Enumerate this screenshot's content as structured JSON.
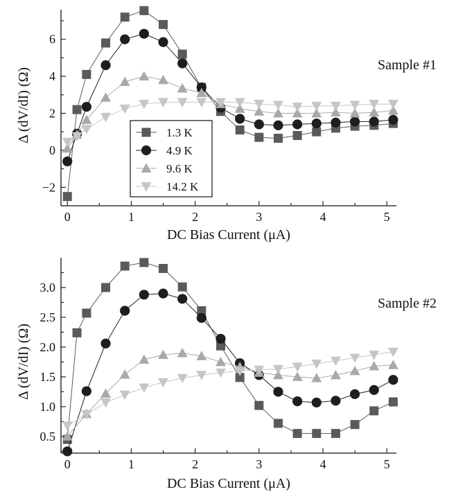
{
  "colors": {
    "1.3 K": "#5a5a5a",
    "4.9 K": "#1e1e1e",
    "9.6 K": "#a9a9a9",
    "14.2 K": "#c6c6c6"
  },
  "chart_data": [
    {
      "type": "scatter",
      "title": "",
      "annotation": "Sample #1",
      "xlabel": "DC Bias Current (μA)",
      "ylabel": "Δ (dV/dI)  (Ω)",
      "xlim": [
        -0.1,
        5.15
      ],
      "ylim": [
        -3.0,
        7.6
      ],
      "xticks": [
        0,
        1,
        2,
        3,
        4,
        5
      ],
      "xtick_labels": [
        "0",
        "1",
        "2",
        "3",
        "4",
        "5"
      ],
      "yticks": [
        -2,
        0,
        2,
        4,
        6
      ],
      "ytick_labels": [
        "−2",
        "0",
        "2",
        "4",
        "6"
      ],
      "grid": false,
      "legend": "center-left",
      "series": [
        {
          "name": "1.3 K",
          "marker": "square",
          "x": [
            0,
            0.15,
            0.3,
            0.6,
            0.9,
            1.2,
            1.5,
            1.8,
            2.1,
            2.4,
            2.7,
            3.0,
            3.3,
            3.6,
            3.9,
            4.2,
            4.5,
            4.8,
            5.1
          ],
          "y": [
            -2.5,
            2.2,
            4.1,
            5.8,
            7.2,
            7.55,
            6.8,
            5.2,
            3.4,
            2.1,
            1.1,
            0.7,
            0.65,
            0.8,
            1.0,
            1.2,
            1.3,
            1.35,
            1.45
          ]
        },
        {
          "name": "4.9 K",
          "marker": "circle",
          "x": [
            0,
            0.15,
            0.3,
            0.6,
            0.9,
            1.2,
            1.5,
            1.8,
            2.1,
            2.4,
            2.7,
            3.0,
            3.3,
            3.6,
            3.9,
            4.2,
            4.5,
            4.8,
            5.1
          ],
          "y": [
            -0.6,
            0.9,
            2.35,
            4.6,
            6.0,
            6.3,
            5.85,
            4.7,
            3.4,
            2.3,
            1.7,
            1.4,
            1.35,
            1.4,
            1.45,
            1.5,
            1.55,
            1.55,
            1.65
          ]
        },
        {
          "name": "9.6 K",
          "marker": "triangle-up",
          "x": [
            0,
            0.15,
            0.3,
            0.6,
            0.9,
            1.2,
            1.5,
            1.8,
            2.1,
            2.4,
            2.7,
            3.0,
            3.3,
            3.6,
            3.9,
            4.2,
            4.5,
            4.8,
            5.1
          ],
          "y": [
            0.1,
            0.85,
            1.65,
            2.85,
            3.7,
            4.0,
            3.8,
            3.35,
            3.1,
            2.5,
            2.25,
            2.1,
            2.0,
            2.0,
            2.0,
            2.05,
            2.0,
            2.05,
            2.15
          ]
        },
        {
          "name": "14.2 K",
          "marker": "triangle-down",
          "x": [
            0,
            0.15,
            0.3,
            0.6,
            0.9,
            1.2,
            1.5,
            1.8,
            2.1,
            2.4,
            2.7,
            3.0,
            3.3,
            3.6,
            3.9,
            4.2,
            4.5,
            4.8,
            5.1
          ],
          "y": [
            0.45,
            0.75,
            1.15,
            1.8,
            2.25,
            2.5,
            2.6,
            2.6,
            2.6,
            2.6,
            2.6,
            2.5,
            2.45,
            2.35,
            2.4,
            2.4,
            2.45,
            2.5,
            2.5
          ]
        }
      ]
    },
    {
      "type": "scatter",
      "title": "",
      "annotation": "Sample #2",
      "xlabel": "DC Bias Current (μA)",
      "ylabel": "Δ (dV/dI)  (Ω)",
      "xlim": [
        -0.1,
        5.15
      ],
      "ylim": [
        0.22,
        3.5
      ],
      "xticks": [
        0,
        1,
        2,
        3,
        4,
        5
      ],
      "xtick_labels": [
        "0",
        "1",
        "2",
        "3",
        "4",
        "5"
      ],
      "yticks": [
        0.5,
        1.0,
        1.5,
        2.0,
        2.5,
        3.0
      ],
      "ytick_labels": [
        "0.5",
        "1.0",
        "1.5",
        "2.0",
        "2.5",
        "3.0"
      ],
      "grid": false,
      "series": [
        {
          "name": "1.3 K",
          "marker": "square",
          "x": [
            0,
            0.15,
            0.3,
            0.6,
            0.9,
            1.2,
            1.5,
            1.8,
            2.1,
            2.4,
            2.7,
            3.0,
            3.3,
            3.6,
            3.9,
            4.2,
            4.5,
            4.8,
            5.1
          ],
          "y": [
            0.45,
            2.24,
            2.57,
            3.0,
            3.36,
            3.42,
            3.32,
            3.01,
            2.61,
            2.02,
            1.49,
            1.02,
            0.72,
            0.55,
            0.55,
            0.55,
            0.7,
            0.93,
            1.08
          ]
        },
        {
          "name": "4.9 K",
          "marker": "circle",
          "x": [
            0,
            0.3,
            0.6,
            0.9,
            1.2,
            1.5,
            1.8,
            2.1,
            2.4,
            2.7,
            3.0,
            3.3,
            3.6,
            3.9,
            4.2,
            4.5,
            4.8,
            5.1
          ],
          "y": [
            0.25,
            1.26,
            2.06,
            2.61,
            2.88,
            2.9,
            2.81,
            2.49,
            2.14,
            1.73,
            1.53,
            1.25,
            1.09,
            1.07,
            1.1,
            1.21,
            1.28,
            1.45
          ]
        },
        {
          "name": "9.6 K",
          "marker": "triangle-up",
          "x": [
            0,
            0.3,
            0.6,
            0.9,
            1.2,
            1.5,
            1.8,
            2.1,
            2.4,
            2.7,
            3.0,
            3.3,
            3.6,
            3.9,
            4.2,
            4.5,
            4.8,
            5.1
          ],
          "y": [
            0.5,
            0.88,
            1.22,
            1.54,
            1.79,
            1.87,
            1.9,
            1.85,
            1.75,
            1.67,
            1.57,
            1.53,
            1.5,
            1.48,
            1.53,
            1.6,
            1.68,
            1.7
          ]
        },
        {
          "name": "14.2 K",
          "marker": "triangle-down",
          "x": [
            0,
            0.3,
            0.6,
            0.9,
            1.2,
            1.5,
            1.8,
            2.1,
            2.4,
            2.7,
            3.0,
            3.3,
            3.6,
            3.9,
            4.2,
            4.5,
            4.8,
            5.1
          ],
          "y": [
            0.68,
            0.87,
            1.07,
            1.2,
            1.32,
            1.41,
            1.48,
            1.53,
            1.57,
            1.6,
            1.62,
            1.63,
            1.67,
            1.72,
            1.77,
            1.82,
            1.87,
            1.92
          ]
        }
      ]
    }
  ]
}
